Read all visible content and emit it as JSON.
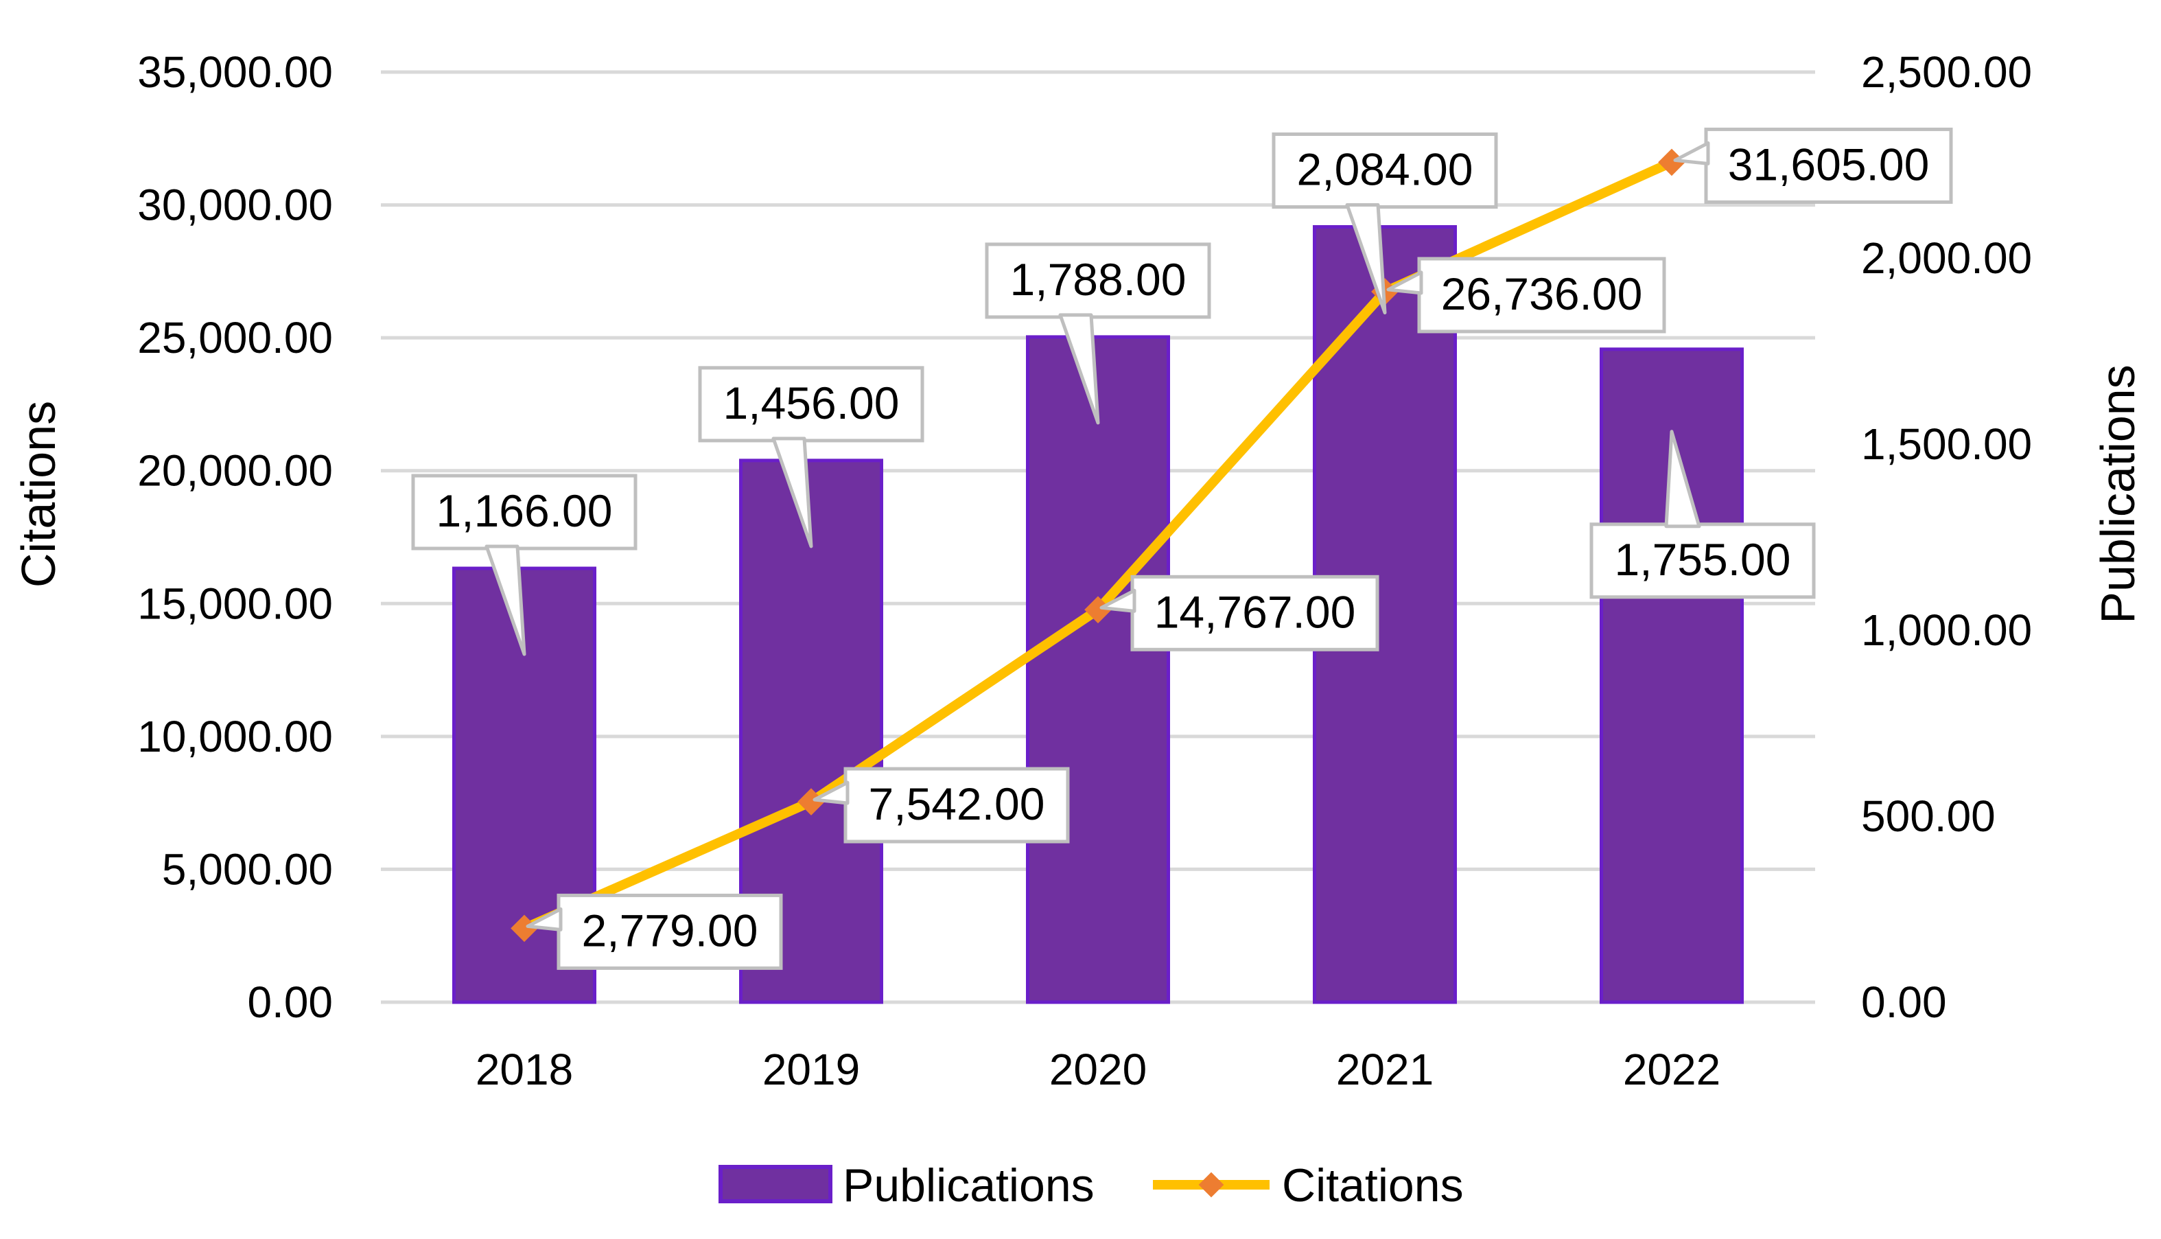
{
  "chart_data": {
    "type": "bar",
    "categories": [
      "2018",
      "2019",
      "2020",
      "2021",
      "2022"
    ],
    "series": [
      {
        "name": "Publications",
        "type": "bar",
        "axis": "right",
        "color": "#7030A0",
        "values": [
          1166,
          1456,
          1788,
          2084,
          1755
        ],
        "labels": [
          "1,166.00",
          "1,456.00",
          "1,788.00",
          "2,084.00",
          "1,755.00"
        ]
      },
      {
        "name": "Citations",
        "type": "line",
        "axis": "left",
        "color": "#FFC000",
        "marker_color": "#ED7D31",
        "marker": "diamond",
        "values": [
          2779,
          7542,
          14767,
          26736,
          31605
        ],
        "labels": [
          "2,779.00",
          "7,542.00",
          "14,767.00",
          "26,736.00",
          "31,605.00"
        ]
      }
    ],
    "ylabel": "Citations",
    "y2label": "Publications",
    "ylim": [
      0,
      35000
    ],
    "y2lim": [
      0,
      2500
    ],
    "yticks": [
      "0.00",
      "5,000.00",
      "10,000.00",
      "15,000.00",
      "20,000.00",
      "25,000.00",
      "30,000.00",
      "35,000.00"
    ],
    "y2ticks": [
      "0.00",
      "500.00",
      "1,000.00",
      "1,500.00",
      "2,000.00",
      "2,500.00"
    ],
    "grid": true,
    "legend": "bottom-center",
    "gridline_color": "#D9D9D9"
  }
}
